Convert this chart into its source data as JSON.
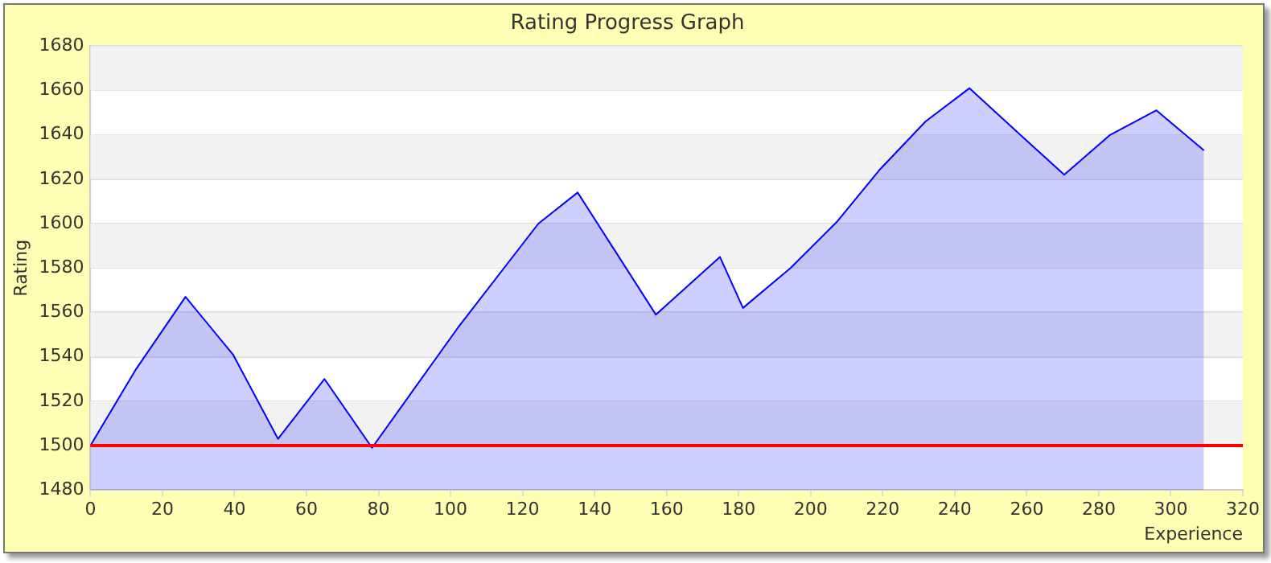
{
  "chart_data": {
    "type": "area",
    "title": "Rating Progress Graph",
    "xlabel": "Experience",
    "ylabel": "Rating",
    "x": [
      0,
      12.5,
      26.4,
      39.6,
      52.1,
      65,
      78.2,
      102,
      124.4,
      135.3,
      157,
      174.8,
      181.2,
      194.4,
      207.4,
      219,
      231.9,
      244.1,
      257.5,
      270.4,
      283.2,
      296,
      309.2
    ],
    "series": [
      {
        "color": "#0000ff",
        "values": [
          1500,
          1534,
          1567,
          1541,
          1503,
          1530,
          1499,
          1553,
          1600,
          1614,
          1559,
          1585,
          1562,
          1580,
          1601,
          1624,
          1646,
          1661,
          1641,
          1622,
          1640,
          1651,
          1633
        ]
      }
    ],
    "xlim": [
      0,
      320
    ],
    "xticks": [
      0,
      20,
      40,
      60,
      80,
      100,
      120,
      140,
      160,
      180,
      200,
      220,
      240,
      260,
      280,
      300,
      320
    ],
    "ylim": [
      1480,
      1680
    ],
    "yticks": [
      1480,
      1500,
      1520,
      1540,
      1560,
      1580,
      1600,
      1620,
      1640,
      1660,
      1680
    ],
    "ref_lines": [
      {
        "axis": "y",
        "value": 1500,
        "color": "#ff0000"
      }
    ],
    "grid": "y",
    "legend": false,
    "marker": "none",
    "line_style": "solid"
  }
}
